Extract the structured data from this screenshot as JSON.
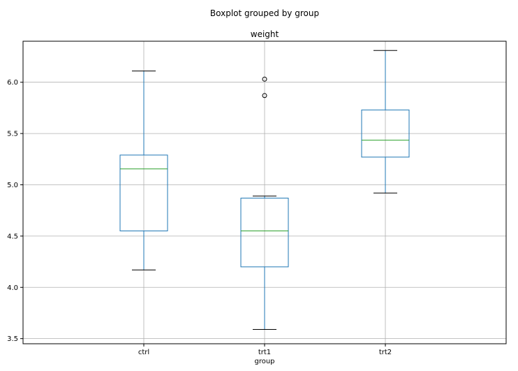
{
  "chart_data": {
    "type": "box",
    "suptitle": "Boxplot grouped by group",
    "title": "weight",
    "xlabel": "group",
    "ylabel": "",
    "ylim": [
      3.45,
      6.4
    ],
    "yticks": [
      3.5,
      4.0,
      4.5,
      5.0,
      5.5,
      6.0
    ],
    "ytick_labels": [
      "3.5",
      "4.0",
      "4.5",
      "5.0",
      "5.5",
      "6.0"
    ],
    "grid": true,
    "categories": [
      "ctrl",
      "trt1",
      "trt2"
    ],
    "boxes": [
      {
        "name": "ctrl",
        "whisker_low": 4.17,
        "q1": 4.55,
        "median": 5.155,
        "q3": 5.29,
        "whisker_high": 6.11,
        "outliers": []
      },
      {
        "name": "trt1",
        "whisker_low": 3.59,
        "q1": 4.2,
        "median": 4.55,
        "q3": 4.87,
        "whisker_high": 4.89,
        "outliers": [
          5.87,
          6.03
        ]
      },
      {
        "name": "trt2",
        "whisker_low": 4.92,
        "q1": 5.27,
        "median": 5.435,
        "q3": 5.73,
        "whisker_high": 6.31,
        "outliers": []
      }
    ],
    "colors": {
      "box": "#1f77b4",
      "median": "#2ca02c",
      "whisker": "#1f77b4",
      "cap": "#000000",
      "grid": "#b0b0b0",
      "axes": "#000000"
    }
  }
}
